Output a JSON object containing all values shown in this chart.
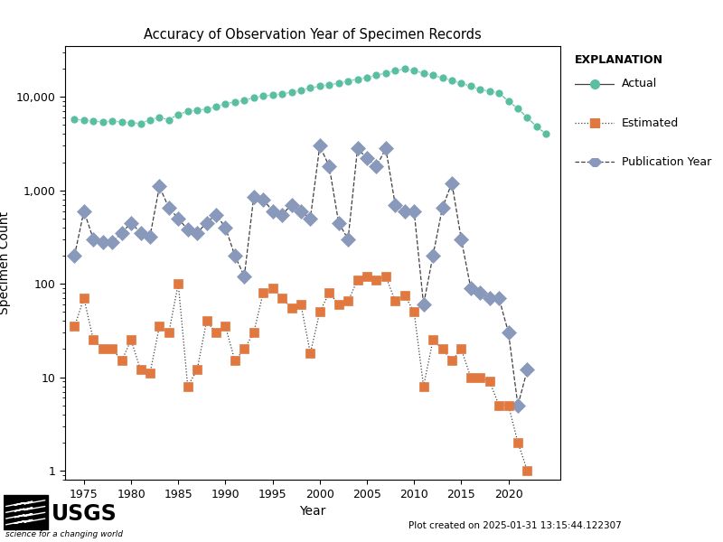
{
  "title": "Accuracy of Observation Year of Specimen Records",
  "xlabel": "Year",
  "ylabel": "Specimen Count",
  "explanation_title": "EXPLANATION",
  "legend_labels": [
    "Actual",
    "Estimated",
    "Publication Year"
  ],
  "footer_text": "Plot created on 2025-01-31 13:15:44.122307",
  "years": [
    1974,
    1975,
    1976,
    1977,
    1978,
    1979,
    1980,
    1981,
    1982,
    1983,
    1984,
    1985,
    1986,
    1987,
    1988,
    1989,
    1990,
    1991,
    1992,
    1993,
    1994,
    1995,
    1996,
    1997,
    1998,
    1999,
    2000,
    2001,
    2002,
    2003,
    2004,
    2005,
    2006,
    2007,
    2008,
    2009,
    2010,
    2011,
    2012,
    2013,
    2014,
    2015,
    2016,
    2017,
    2018,
    2019,
    2020,
    2021,
    2022,
    2023,
    2024
  ],
  "actual": [
    5800,
    5600,
    5500,
    5400,
    5500,
    5400,
    5300,
    5200,
    5700,
    6000,
    5700,
    6500,
    7000,
    7200,
    7400,
    7800,
    8500,
    8800,
    9200,
    9800,
    10200,
    10500,
    10800,
    11200,
    11800,
    12500,
    13000,
    13500,
    14000,
    14800,
    15500,
    16000,
    17000,
    18000,
    19000,
    20000,
    19000,
    18000,
    17000,
    16000,
    15000,
    14000,
    13000,
    12000,
    11500,
    11000,
    9000,
    7500,
    6000,
    4800,
    4000
  ],
  "estimated": [
    35,
    70,
    25,
    20,
    20,
    15,
    25,
    12,
    11,
    35,
    30,
    100,
    8,
    12,
    40,
    30,
    35,
    15,
    20,
    30,
    80,
    90,
    70,
    55,
    60,
    18,
    50,
    80,
    60,
    65,
    110,
    120,
    110,
    120,
    65,
    75,
    50,
    8,
    25,
    20,
    15,
    20,
    10,
    10,
    9,
    5,
    5,
    2,
    1,
    null,
    null
  ],
  "pub_year": [
    200,
    600,
    300,
    280,
    280,
    350,
    450,
    350,
    320,
    1100,
    650,
    500,
    380,
    350,
    450,
    550,
    400,
    200,
    120,
    850,
    800,
    600,
    550,
    700,
    600,
    500,
    3000,
    1800,
    450,
    300,
    2800,
    2200,
    1800,
    2800,
    700,
    600,
    600,
    60,
    200,
    650,
    1200,
    300,
    90,
    80,
    70,
    70,
    30,
    5,
    12,
    null,
    null
  ],
  "actual_color": "#5abfa0",
  "estimated_color": "#e07840",
  "pub_year_color": "#8899bb",
  "bg_color": "#ffffff",
  "ylim_log": [
    0.8,
    35000
  ],
  "xlim": [
    1973.0,
    2025.5
  ]
}
